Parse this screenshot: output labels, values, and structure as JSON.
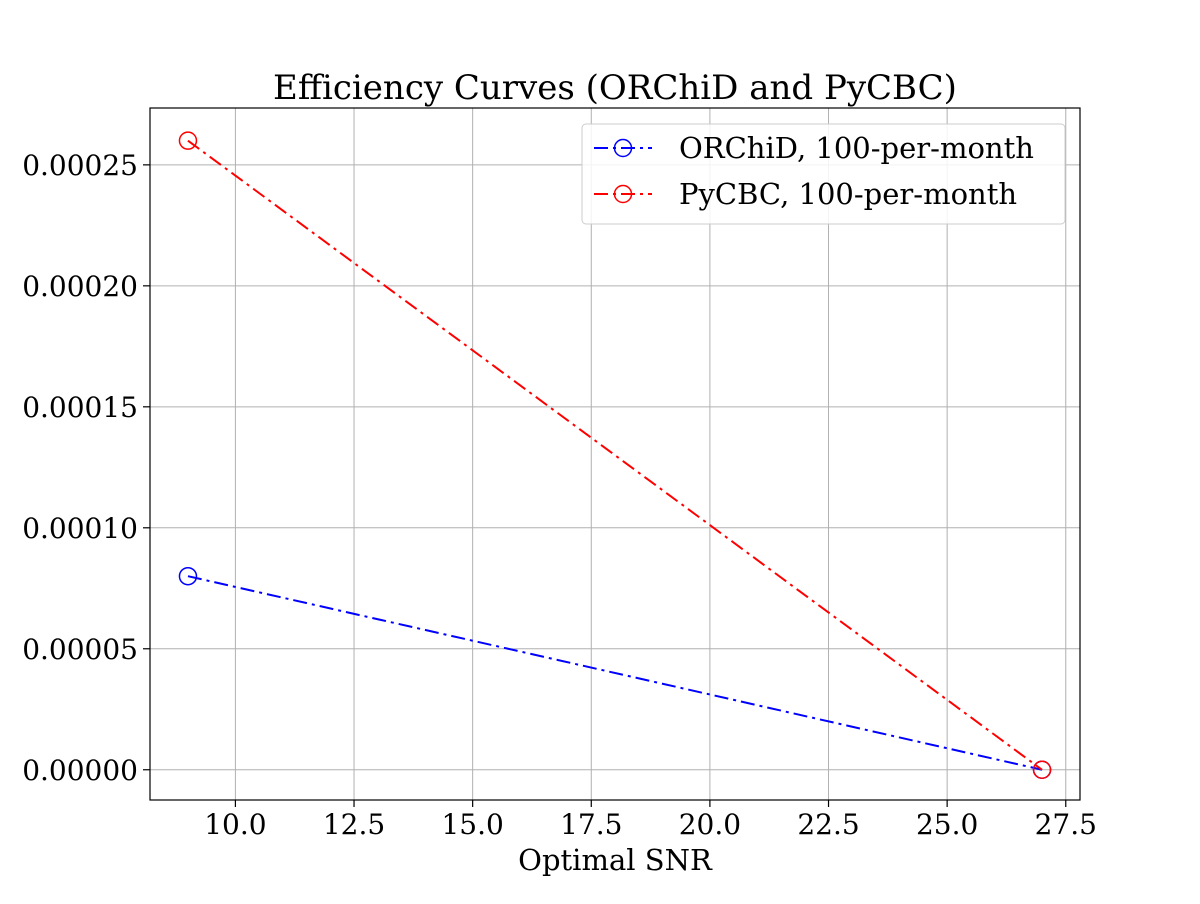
{
  "chart_data": {
    "type": "line",
    "title": "Efficiency Curves (ORChiD and PyCBC)",
    "xlabel": "Optimal SNR",
    "ylabel": "",
    "xlim": [
      8.2,
      27.8
    ],
    "ylim": [
      -1.25e-05,
      0.0002735
    ],
    "x_ticks": [
      10.0,
      12.5,
      15.0,
      17.5,
      20.0,
      22.5,
      25.0,
      27.5
    ],
    "x_tick_labels": [
      "10.0",
      "12.5",
      "15.0",
      "17.5",
      "20.0",
      "22.5",
      "25.0",
      "27.5"
    ],
    "y_ticks": [
      0,
      5e-05,
      0.0001,
      0.00015,
      0.0002,
      0.00025
    ],
    "y_tick_labels": [
      "0.00000",
      "0.00005",
      "0.00010",
      "0.00015",
      "0.00020",
      "0.00025"
    ],
    "grid": true,
    "legend_position": "top-right",
    "series": [
      {
        "name": "ORChiD, 100-per-month",
        "color": "#0000ff",
        "line_style": "dash-dot",
        "marker": "open-circle",
        "x": [
          9.0,
          27.0
        ],
        "y": [
          8e-05,
          0.0
        ]
      },
      {
        "name": "PyCBC, 100-per-month",
        "color": "#ff0000",
        "line_style": "dash-dot",
        "marker": "open-circle",
        "x": [
          9.0,
          27.0
        ],
        "y": [
          0.00026,
          0.0
        ]
      }
    ]
  }
}
